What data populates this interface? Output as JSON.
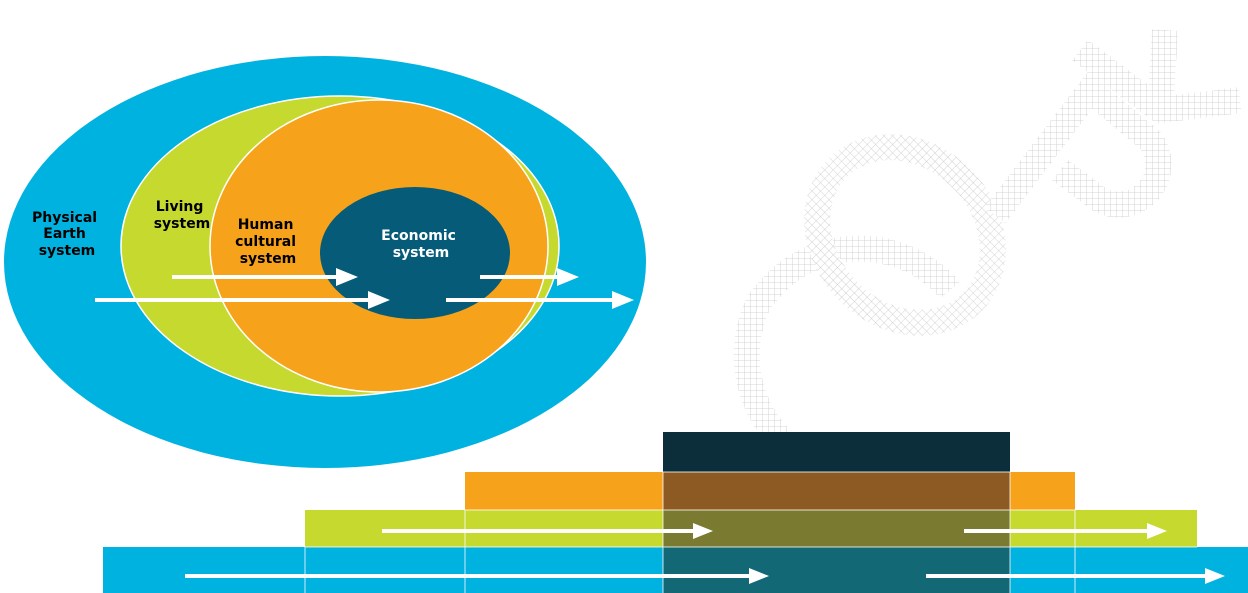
{
  "diagram": {
    "colors": {
      "physical": "#00b2df",
      "living": "#c6d92e",
      "cultural": "#f6a21b",
      "economic": "#055b78",
      "economic_top": "#0b2e3a",
      "arrow": "#ffffff",
      "watermark": "#bdbdbd"
    },
    "labels": {
      "physical": [
        "Physical",
        "Earth",
        "system"
      ],
      "living": [
        "Living",
        "system"
      ],
      "cultural": [
        "Human",
        "cultural",
        "system"
      ],
      "economic": [
        "Economic",
        "system"
      ]
    },
    "watermark": "COPY"
  }
}
